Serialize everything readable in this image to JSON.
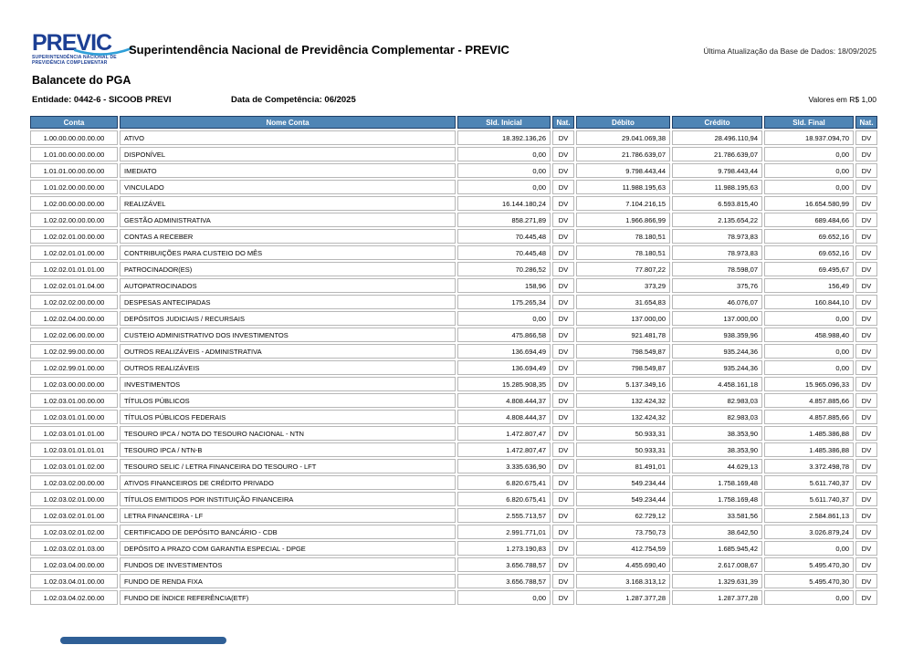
{
  "header": {
    "logo_text": "PREVIC",
    "logo_subtitle_line1": "SUPERINTENDÊNCIA NACIONAL DE",
    "logo_subtitle_line2": "PREVIDÊNCIA COMPLEMENTAR",
    "title": "Superintendência Nacional de Previdência Complementar - PREVIC",
    "last_update": "Última Atualização da Base de Dados: 18/09/2025"
  },
  "report": {
    "title": "Balancete do PGA",
    "entity": "Entidade: 0442-6 - SICOOB PREVI",
    "competence": "Data de Competência: 06/2025",
    "currency_note": "Valores em R$ 1,00"
  },
  "colors": {
    "table_header_bg": "#4f85b5",
    "table_header_border": "#1f3e66",
    "cell_border": "#b7b7b7",
    "logo_navy": "#1c3f94",
    "logo_swoosh": "#2f9fd8",
    "footer_bar": "#2f5f96"
  },
  "table": {
    "columns": [
      "Conta",
      "Nome Conta",
      "Sld. Inicial",
      "Nat.",
      "Débito",
      "Crédito",
      "Sld. Final",
      "Nat."
    ],
    "rows": [
      [
        "1.00.00.00.00.00.00",
        "ATIVO",
        "18.392.136,26",
        "DV",
        "29.041.069,38",
        "28.496.110,94",
        "18.937.094,70",
        "DV"
      ],
      [
        "1.01.00.00.00.00.00",
        "DISPONÍVEL",
        "0,00",
        "DV",
        "21.786.639,07",
        "21.786.639,07",
        "0,00",
        "DV"
      ],
      [
        "1.01.01.00.00.00.00",
        "IMEDIATO",
        "0,00",
        "DV",
        "9.798.443,44",
        "9.798.443,44",
        "0,00",
        "DV"
      ],
      [
        "1.01.02.00.00.00.00",
        "VINCULADO",
        "0,00",
        "DV",
        "11.988.195,63",
        "11.988.195,63",
        "0,00",
        "DV"
      ],
      [
        "1.02.00.00.00.00.00",
        "REALIZÁVEL",
        "16.144.180,24",
        "DV",
        "7.104.216,15",
        "6.593.815,40",
        "16.654.580,99",
        "DV"
      ],
      [
        "1.02.02.00.00.00.00",
        "GESTÃO ADMINISTRATIVA",
        "858.271,89",
        "DV",
        "1.966.866,99",
        "2.135.654,22",
        "689.484,66",
        "DV"
      ],
      [
        "1.02.02.01.00.00.00",
        "CONTAS A RECEBER",
        "70.445,48",
        "DV",
        "78.180,51",
        "78.973,83",
        "69.652,16",
        "DV"
      ],
      [
        "1.02.02.01.01.00.00",
        "CONTRIBUIÇÕES PARA CUSTEIO DO MÊS",
        "70.445,48",
        "DV",
        "78.180,51",
        "78.973,83",
        "69.652,16",
        "DV"
      ],
      [
        "1.02.02.01.01.01.00",
        "PATROCINADOR(ES)",
        "70.286,52",
        "DV",
        "77.807,22",
        "78.598,07",
        "69.495,67",
        "DV"
      ],
      [
        "1.02.02.01.01.04.00",
        "AUTOPATROCINADOS",
        "158,96",
        "DV",
        "373,29",
        "375,76",
        "156,49",
        "DV"
      ],
      [
        "1.02.02.02.00.00.00",
        "DESPESAS ANTECIPADAS",
        "175.265,34",
        "DV",
        "31.654,83",
        "46.076,07",
        "160.844,10",
        "DV"
      ],
      [
        "1.02.02.04.00.00.00",
        "DEPÓSITOS JUDICIAIS / RECURSAIS",
        "0,00",
        "DV",
        "137.000,00",
        "137.000,00",
        "0,00",
        "DV"
      ],
      [
        "1.02.02.06.00.00.00",
        "CUSTEIO ADMINISTRATIVO DOS INVESTIMENTOS",
        "475.866,58",
        "DV",
        "921.481,78",
        "938.359,96",
        "458.988,40",
        "DV"
      ],
      [
        "1.02.02.99.00.00.00",
        "OUTROS REALIZÁVEIS - ADMINISTRATIVA",
        "136.694,49",
        "DV",
        "798.549,87",
        "935.244,36",
        "0,00",
        "DV"
      ],
      [
        "1.02.02.99.01.00.00",
        "OUTROS REALIZÁVEIS",
        "136.694,49",
        "DV",
        "798.549,87",
        "935.244,36",
        "0,00",
        "DV"
      ],
      [
        "1.02.03.00.00.00.00",
        "INVESTIMENTOS",
        "15.285.908,35",
        "DV",
        "5.137.349,16",
        "4.458.161,18",
        "15.965.096,33",
        "DV"
      ],
      [
        "1.02.03.01.00.00.00",
        "TÍTULOS PÚBLICOS",
        "4.808.444,37",
        "DV",
        "132.424,32",
        "82.983,03",
        "4.857.885,66",
        "DV"
      ],
      [
        "1.02.03.01.01.00.00",
        "TÍTULOS PÚBLICOS FEDERAIS",
        "4.808.444,37",
        "DV",
        "132.424,32",
        "82.983,03",
        "4.857.885,66",
        "DV"
      ],
      [
        "1.02.03.01.01.01.00",
        "TESOURO IPCA / NOTA DO TESOURO NACIONAL - NTN",
        "1.472.807,47",
        "DV",
        "50.933,31",
        "38.353,90",
        "1.485.386,88",
        "DV"
      ],
      [
        "1.02.03.01.01.01.01",
        "TESOURO IPCA / NTN-B",
        "1.472.807,47",
        "DV",
        "50.933,31",
        "38.353,90",
        "1.485.386,88",
        "DV"
      ],
      [
        "1.02.03.01.01.02.00",
        "TESOURO SELIC / LETRA FINANCEIRA DO TESOURO - LFT",
        "3.335.636,90",
        "DV",
        "81.491,01",
        "44.629,13",
        "3.372.498,78",
        "DV"
      ],
      [
        "1.02.03.02.00.00.00",
        "ATIVOS FINANCEIROS DE CRÉDITO PRIVADO",
        "6.820.675,41",
        "DV",
        "549.234,44",
        "1.758.169,48",
        "5.611.740,37",
        "DV"
      ],
      [
        "1.02.03.02.01.00.00",
        "TÍTULOS EMITIDOS POR INSTITUIÇÃO FINANCEIRA",
        "6.820.675,41",
        "DV",
        "549.234,44",
        "1.758.169,48",
        "5.611.740,37",
        "DV"
      ],
      [
        "1.02.03.02.01.01.00",
        "LETRA FINANCEIRA - LF",
        "2.555.713,57",
        "DV",
        "62.729,12",
        "33.581,56",
        "2.584.861,13",
        "DV"
      ],
      [
        "1.02.03.02.01.02.00",
        "CERTIFICADO DE DEPÓSITO BANCÁRIO - CDB",
        "2.991.771,01",
        "DV",
        "73.750,73",
        "38.642,50",
        "3.026.879,24",
        "DV"
      ],
      [
        "1.02.03.02.01.03.00",
        "DEPÓSITO A PRAZO COM GARANTIA ESPECIAL - DPGE",
        "1.273.190,83",
        "DV",
        "412.754,59",
        "1.685.945,42",
        "0,00",
        "DV"
      ],
      [
        "1.02.03.04.00.00.00",
        "FUNDOS DE INVESTIMENTOS",
        "3.656.788,57",
        "DV",
        "4.455.690,40",
        "2.617.008,67",
        "5.495.470,30",
        "DV"
      ],
      [
        "1.02.03.04.01.00.00",
        "FUNDO DE RENDA FIXA",
        "3.656.788,57",
        "DV",
        "3.168.313,12",
        "1.329.631,39",
        "5.495.470,30",
        "DV"
      ],
      [
        "1.02.03.04.02.00.00",
        "FUNDO DE ÍNDICE REFERÊNCIA(ETF)",
        "0,00",
        "DV",
        "1.287.377,28",
        "1.287.377,28",
        "0,00",
        "DV"
      ]
    ]
  }
}
